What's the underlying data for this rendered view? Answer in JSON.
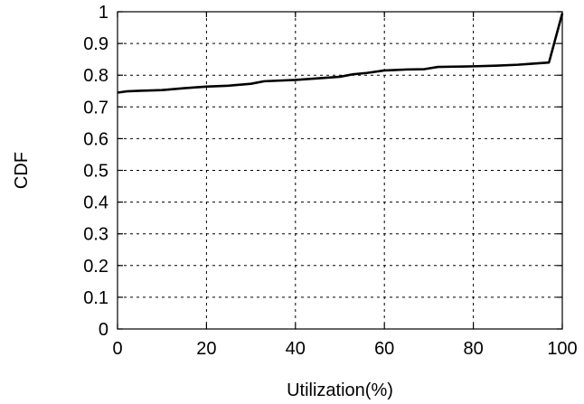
{
  "chart_data": {
    "type": "line",
    "title": "",
    "xlabel": "Utilization(%)",
    "ylabel": "CDF",
    "xlim": [
      0,
      100
    ],
    "ylim": [
      0,
      1
    ],
    "grid": true,
    "legend": "none",
    "x_ticks": [
      0,
      20,
      40,
      60,
      80,
      100
    ],
    "x_tick_labels": [
      "0",
      "20",
      "40",
      "60",
      "80",
      "100"
    ],
    "y_ticks": [
      0,
      0.1,
      0.2,
      0.3,
      0.4,
      0.5,
      0.6,
      0.7,
      0.8,
      0.9,
      1
    ],
    "y_tick_labels": [
      "0",
      "0.1",
      "0.2",
      "0.3",
      "0.4",
      "0.5",
      "0.6",
      "0.7",
      "0.8",
      "0.9",
      "1"
    ],
    "series": [
      {
        "color": "#000000",
        "x": [
          0,
          2,
          5,
          10,
          15,
          20,
          25,
          30,
          33,
          40,
          45,
          50,
          53,
          56,
          60,
          62,
          65,
          69,
          72,
          80,
          85,
          90,
          93,
          97,
          100
        ],
        "y": [
          0.745,
          0.749,
          0.751,
          0.753,
          0.759,
          0.764,
          0.767,
          0.773,
          0.781,
          0.785,
          0.79,
          0.795,
          0.803,
          0.807,
          0.815,
          0.816,
          0.818,
          0.819,
          0.826,
          0.828,
          0.83,
          0.833,
          0.836,
          0.84,
          0.995
        ]
      }
    ]
  }
}
